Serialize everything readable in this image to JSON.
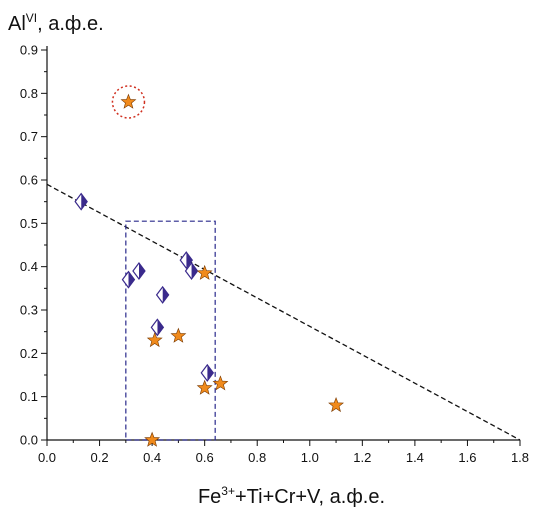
{
  "chart_data": {
    "type": "scatter",
    "title": "",
    "xlabel": {
      "parts": [
        {
          "text": "Fe",
          "sup": false
        },
        {
          "text": "3+",
          "sup": true
        },
        {
          "text": "+Ti+Cr+V, а.ф.е.",
          "sup": false
        }
      ]
    },
    "ylabel": {
      "parts": [
        {
          "text": "Al",
          "sup": false
        },
        {
          "text": "VI",
          "sup": true
        },
        {
          "text": ", а.ф.е.",
          "sup": false
        }
      ]
    },
    "xlim": [
      0.0,
      1.8
    ],
    "ylim": [
      0.0,
      0.9
    ],
    "xticks": [
      "0.0",
      "0.2",
      "0.4",
      "0.6",
      "0.8",
      "1.0",
      "1.2",
      "1.4",
      "1.6",
      "1.8"
    ],
    "yticks": [
      "0.0",
      "0.1",
      "0.2",
      "0.3",
      "0.4",
      "0.5",
      "0.6",
      "0.7",
      "0.8",
      "0.9"
    ],
    "grid": false,
    "series": [
      {
        "marker": "half-filled-diamond",
        "color": "#3a2a8c",
        "points": [
          {
            "x": 0.13,
            "y": 0.55
          },
          {
            "x": 0.31,
            "y": 0.37
          },
          {
            "x": 0.35,
            "y": 0.39
          },
          {
            "x": 0.44,
            "y": 0.335
          },
          {
            "x": 0.42,
            "y": 0.26
          },
          {
            "x": 0.53,
            "y": 0.415
          },
          {
            "x": 0.55,
            "y": 0.39
          },
          {
            "x": 0.61,
            "y": 0.155
          }
        ]
      },
      {
        "marker": "star",
        "color": "#f08a1c",
        "points": [
          {
            "x": 0.31,
            "y": 0.78
          },
          {
            "x": 0.41,
            "y": 0.23
          },
          {
            "x": 0.5,
            "y": 0.24
          },
          {
            "x": 0.6,
            "y": 0.385
          },
          {
            "x": 0.6,
            "y": 0.12
          },
          {
            "x": 0.66,
            "y": 0.13
          },
          {
            "x": 0.4,
            "y": 0.0
          },
          {
            "x": 1.1,
            "y": 0.08
          }
        ]
      }
    ],
    "annotations": {
      "dashed_line": {
        "x1": 0.0,
        "y1": 0.59,
        "x2": 1.8,
        "y2": 0.0,
        "color": "#111111"
      },
      "dashed_rectangle": {
        "x_min": 0.3,
        "x_max": 0.64,
        "y_min": 0.0,
        "y_max": 0.505,
        "color": "#2a2a8c"
      },
      "dotted_circle": {
        "cx": 0.31,
        "cy": 0.78,
        "color": "#d03020"
      }
    }
  }
}
